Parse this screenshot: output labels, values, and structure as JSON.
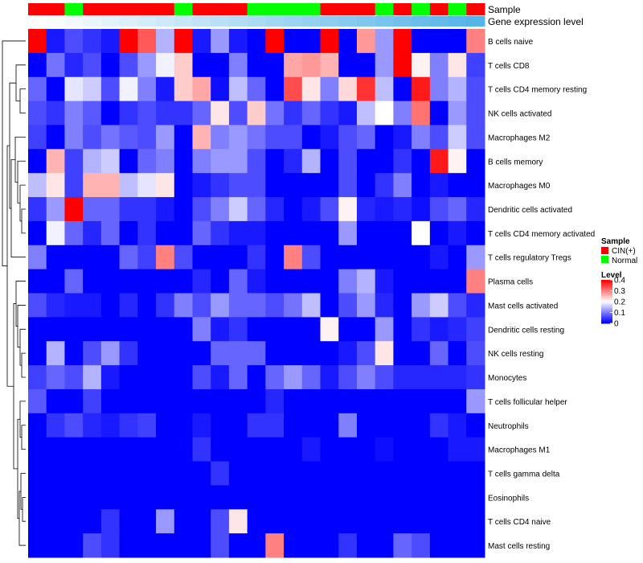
{
  "chart_data": {
    "type": "heatmap",
    "title": "",
    "annotation_tracks": [
      {
        "name": "Sample"
      },
      {
        "name": "Gene expression level"
      }
    ],
    "sample_groups": [
      "CIN",
      "CIN",
      "N",
      "CIN",
      "CIN",
      "CIN",
      "CIN",
      "CIN",
      "N",
      "CIN",
      "CIN",
      "CIN",
      "N",
      "N",
      "N",
      "N",
      "CIN",
      "CIN",
      "CIN",
      "N",
      "CIN",
      "N",
      "CIN",
      "N",
      "CIN"
    ],
    "rows": [
      "B cells naive",
      "T cells CD8",
      "T cells CD4 memory resting",
      "NK cells activated",
      "Macrophages M2",
      "B cells memory",
      "Macrophages M0",
      "Dendritic cells activated",
      "T cells CD4 memory activated",
      "T cells regulatory  Tregs",
      "Plasma cells",
      "Mast cells activated",
      "Dendritic cells resting",
      "NK cells resting",
      "Monocytes",
      "T cells follicular helper",
      "Neutrophils",
      "Macrophages M1",
      "T cells gamma delta",
      "Eosinophils",
      "T cells CD4 naive",
      "Mast cells resting"
    ],
    "values": [
      [
        0.4,
        0.02,
        0.06,
        0.04,
        0.02,
        0.4,
        0.33,
        0.14,
        0.4,
        0.02,
        0.12,
        0.02,
        0.0,
        0.4,
        0.0,
        0.0,
        0.4,
        0.0,
        0.28,
        0.12,
        0.4,
        0.0,
        0.0,
        0.0,
        0.3
      ],
      [
        0.0,
        0.09,
        0.03,
        0.06,
        0.0,
        0.06,
        0.12,
        0.19,
        0.24,
        0.0,
        0.0,
        0.1,
        0.0,
        0.0,
        0.27,
        0.28,
        0.26,
        0.0,
        0.0,
        0.12,
        0.4,
        0.21,
        0.1,
        0.22,
        0.05
      ],
      [
        0.08,
        0.0,
        0.18,
        0.16,
        0.06,
        0.19,
        0.1,
        0.02,
        0.24,
        0.27,
        0.01,
        0.15,
        0.08,
        0.0,
        0.34,
        0.22,
        0.1,
        0.23,
        0.36,
        0.15,
        0.0,
        0.38,
        0.1,
        0.14,
        0.06
      ],
      [
        0.06,
        0.04,
        0.1,
        0.07,
        0.0,
        0.04,
        0.06,
        0.04,
        0.04,
        0.08,
        0.22,
        0.06,
        0.24,
        0.09,
        0.04,
        0.08,
        0.04,
        0.02,
        0.15,
        0.2,
        0.1,
        0.31,
        0.0,
        0.12,
        0.06
      ],
      [
        0.05,
        0.0,
        0.1,
        0.06,
        0.09,
        0.07,
        0.06,
        0.12,
        0.0,
        0.26,
        0.1,
        0.12,
        0.09,
        0.06,
        0.06,
        0.0,
        0.02,
        0.06,
        0.08,
        0.0,
        0.02,
        0.1,
        0.06,
        0.16,
        0.06
      ],
      [
        0.0,
        0.26,
        0.05,
        0.14,
        0.16,
        0.0,
        0.08,
        0.1,
        0.0,
        0.1,
        0.12,
        0.12,
        0.06,
        0.0,
        0.03,
        0.14,
        0.0,
        0.06,
        0.0,
        0.0,
        0.04,
        0.0,
        0.38,
        0.21,
        0.0
      ],
      [
        0.15,
        0.22,
        0.05,
        0.26,
        0.26,
        0.15,
        0.18,
        0.22,
        0.0,
        0.02,
        0.04,
        0.06,
        0.06,
        0.0,
        0.0,
        0.0,
        0.0,
        0.06,
        0.0,
        0.04,
        0.1,
        0.0,
        0.02,
        0.0,
        0.0
      ],
      [
        0.04,
        0.12,
        0.4,
        0.08,
        0.08,
        0.04,
        0.04,
        0.02,
        0.0,
        0.06,
        0.1,
        0.16,
        0.08,
        0.03,
        0.0,
        0.02,
        0.06,
        0.21,
        0.03,
        0.02,
        0.03,
        0.01,
        0.06,
        0.08,
        0.03
      ],
      [
        0.0,
        0.19,
        0.08,
        0.03,
        0.08,
        0.0,
        0.04,
        0.0,
        0.0,
        0.08,
        0.04,
        0.02,
        0.02,
        0.0,
        0.0,
        0.0,
        0.0,
        0.12,
        0.0,
        0.0,
        0.0,
        0.2,
        0.0,
        0.02,
        0.0
      ],
      [
        0.1,
        0.0,
        0.0,
        0.0,
        0.0,
        0.08,
        0.05,
        0.3,
        0.06,
        0.0,
        0.0,
        0.0,
        0.04,
        0.0,
        0.3,
        0.06,
        0.0,
        0.0,
        0.0,
        0.0,
        0.0,
        0.0,
        0.02,
        0.0,
        0.12
      ],
      [
        0.0,
        0.0,
        0.08,
        0.0,
        0.0,
        0.0,
        0.0,
        0.0,
        0.0,
        0.03,
        0.0,
        0.08,
        0.02,
        0.0,
        0.0,
        0.0,
        0.0,
        0.1,
        0.14,
        0.02,
        0.0,
        0.0,
        0.0,
        0.0,
        0.3
      ],
      [
        0.06,
        0.03,
        0.02,
        0.02,
        0.0,
        0.03,
        0.0,
        0.04,
        0.1,
        0.06,
        0.12,
        0.08,
        0.08,
        0.06,
        0.09,
        0.15,
        0.0,
        0.06,
        0.12,
        0.03,
        0.0,
        0.12,
        0.16,
        0.06,
        0.03
      ],
      [
        0.0,
        0.0,
        0.0,
        0.0,
        0.0,
        0.0,
        0.0,
        0.0,
        0.0,
        0.1,
        0.02,
        0.04,
        0.0,
        0.0,
        0.0,
        0.0,
        0.21,
        0.0,
        0.0,
        0.12,
        0.0,
        0.04,
        0.02,
        0.03,
        0.05
      ],
      [
        0.0,
        0.14,
        0.0,
        0.06,
        0.12,
        0.04,
        0.0,
        0.0,
        0.0,
        0.0,
        0.08,
        0.08,
        0.08,
        0.0,
        0.0,
        0.0,
        0.0,
        0.02,
        0.06,
        0.22,
        0.0,
        0.0,
        0.08,
        0.0,
        0.06
      ],
      [
        0.05,
        0.08,
        0.06,
        0.14,
        0.02,
        0.0,
        0.0,
        0.0,
        0.0,
        0.06,
        0.02,
        0.08,
        0.0,
        0.08,
        0.12,
        0.08,
        0.02,
        0.06,
        0.1,
        0.06,
        0.03,
        0.03,
        0.03,
        0.03,
        0.04
      ],
      [
        0.07,
        0.0,
        0.0,
        0.05,
        0.0,
        0.0,
        0.0,
        0.0,
        0.0,
        0.0,
        0.0,
        0.0,
        0.0,
        0.03,
        0.0,
        0.0,
        0.0,
        0.0,
        0.0,
        0.0,
        0.0,
        0.0,
        0.0,
        0.0,
        0.12
      ],
      [
        0.0,
        0.04,
        0.06,
        0.03,
        0.02,
        0.04,
        0.05,
        0.0,
        0.0,
        0.02,
        0.0,
        0.0,
        0.04,
        0.04,
        0.0,
        0.0,
        0.0,
        0.1,
        0.0,
        0.0,
        0.0,
        0.0,
        0.04,
        0.02,
        0.0
      ],
      [
        0.0,
        0.0,
        0.0,
        0.0,
        0.0,
        0.0,
        0.0,
        0.0,
        0.0,
        0.04,
        0.0,
        0.0,
        0.0,
        0.0,
        0.0,
        0.02,
        0.0,
        0.0,
        0.0,
        0.01,
        0.0,
        0.0,
        0.0,
        0.02,
        0.02
      ],
      [
        0.0,
        0.0,
        0.0,
        0.0,
        0.0,
        0.0,
        0.0,
        0.0,
        0.0,
        0.0,
        0.04,
        0.0,
        0.0,
        0.0,
        0.0,
        0.0,
        0.0,
        0.0,
        0.0,
        0.0,
        0.0,
        0.0,
        0.0,
        0.0,
        0.0
      ],
      [
        0.0,
        0.0,
        0.0,
        0.0,
        0.0,
        0.0,
        0.0,
        0.0,
        0.0,
        0.0,
        0.0,
        0.0,
        0.0,
        0.0,
        0.0,
        0.0,
        0.0,
        0.0,
        0.0,
        0.0,
        0.0,
        0.0,
        0.0,
        0.0,
        0.0
      ],
      [
        0.0,
        0.0,
        0.0,
        0.0,
        0.04,
        0.0,
        0.0,
        0.12,
        0.0,
        0.0,
        0.06,
        0.22,
        0.0,
        0.0,
        0.0,
        0.0,
        0.0,
        0.0,
        0.0,
        0.0,
        0.0,
        0.0,
        0.0,
        0.0,
        0.0
      ],
      [
        0.0,
        0.0,
        0.0,
        0.06,
        0.04,
        0.0,
        0.0,
        0.0,
        0.0,
        0.0,
        0.06,
        0.0,
        0.0,
        0.3,
        0.0,
        0.0,
        0.0,
        0.04,
        0.0,
        0.0,
        0.08,
        0.06,
        0.0,
        0.0,
        0.0
      ]
    ],
    "legend": {
      "sample": {
        "title": "Sample",
        "entries": [
          {
            "key": "CIN",
            "label": "CIN(+)",
            "color": "#FF0000"
          },
          {
            "key": "N",
            "label": "Normal",
            "color": "#00FF00"
          }
        ]
      },
      "level": {
        "title": "Level",
        "ticks": [
          "0.4",
          "0.3",
          "0.2",
          "0.1",
          "0"
        ],
        "tick_values": [
          0.4,
          0.3,
          0.2,
          0.1,
          0.0
        ],
        "range": [
          0,
          0.4
        ]
      }
    },
    "colors": {
      "low": "#0000FF",
      "mid": "#FFFFFF",
      "high": "#FF0000",
      "expression_track_start": "#FFFFFF",
      "expression_track_end": "#56B4E9"
    }
  }
}
